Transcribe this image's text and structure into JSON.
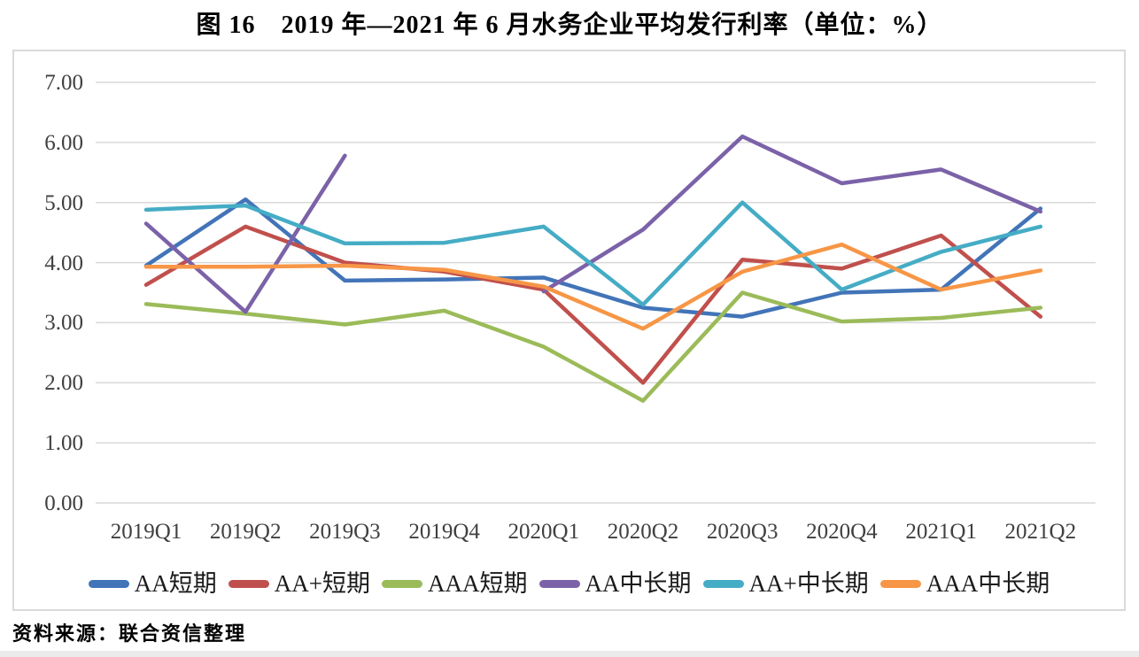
{
  "title": "图 16　2019 年—2021 年 6 月水务企业平均发行利率（单位：%）",
  "source_note": "资料来源：联合资信整理",
  "chart_data": {
    "type": "line",
    "title": "图 16　2019 年—2021 年 6 月水务企业平均发行利率（单位：%）",
    "categories": [
      "2019Q1",
      "2019Q2",
      "2019Q3",
      "2019Q4",
      "2020Q1",
      "2020Q2",
      "2020Q3",
      "2020Q4",
      "2021Q1",
      "2021Q2"
    ],
    "series": [
      {
        "name": "AA短期",
        "color": "#4274B8",
        "values": [
          3.95,
          5.05,
          3.7,
          3.72,
          3.75,
          3.25,
          3.1,
          3.5,
          3.55,
          4.9
        ]
      },
      {
        "name": "AA+短期",
        "color": "#C0504D",
        "values": [
          3.63,
          4.6,
          4.0,
          3.85,
          3.55,
          2.0,
          4.05,
          3.9,
          4.45,
          3.1
        ]
      },
      {
        "name": "AAA短期",
        "color": "#9BBB59",
        "values": [
          3.31,
          3.15,
          2.97,
          3.2,
          2.6,
          1.7,
          3.5,
          3.02,
          3.08,
          3.25
        ]
      },
      {
        "name": "AA中长期",
        "color": "#7B62A8",
        "values": [
          4.65,
          3.18,
          5.78,
          null,
          3.52,
          4.55,
          6.1,
          5.32,
          5.55,
          4.85
        ]
      },
      {
        "name": "AA+中长期",
        "color": "#45ACC5",
        "values": [
          4.88,
          4.95,
          4.32,
          4.33,
          4.6,
          3.3,
          5.0,
          3.55,
          4.18,
          4.6
        ]
      },
      {
        "name": "AAA中长期",
        "color": "#F79646",
        "values": [
          3.93,
          3.93,
          3.95,
          3.88,
          3.6,
          2.9,
          3.85,
          4.3,
          3.55,
          3.87
        ]
      }
    ],
    "ylim": [
      0,
      7
    ],
    "ytick_step": 1,
    "ytick_labels": [
      "0.00",
      "1.00",
      "2.00",
      "3.00",
      "4.00",
      "5.00",
      "6.00",
      "7.00"
    ],
    "xlabel": "",
    "ylabel": "",
    "grid": true,
    "legend_position": "bottom",
    "gridline_color": "#d9d9d9"
  }
}
